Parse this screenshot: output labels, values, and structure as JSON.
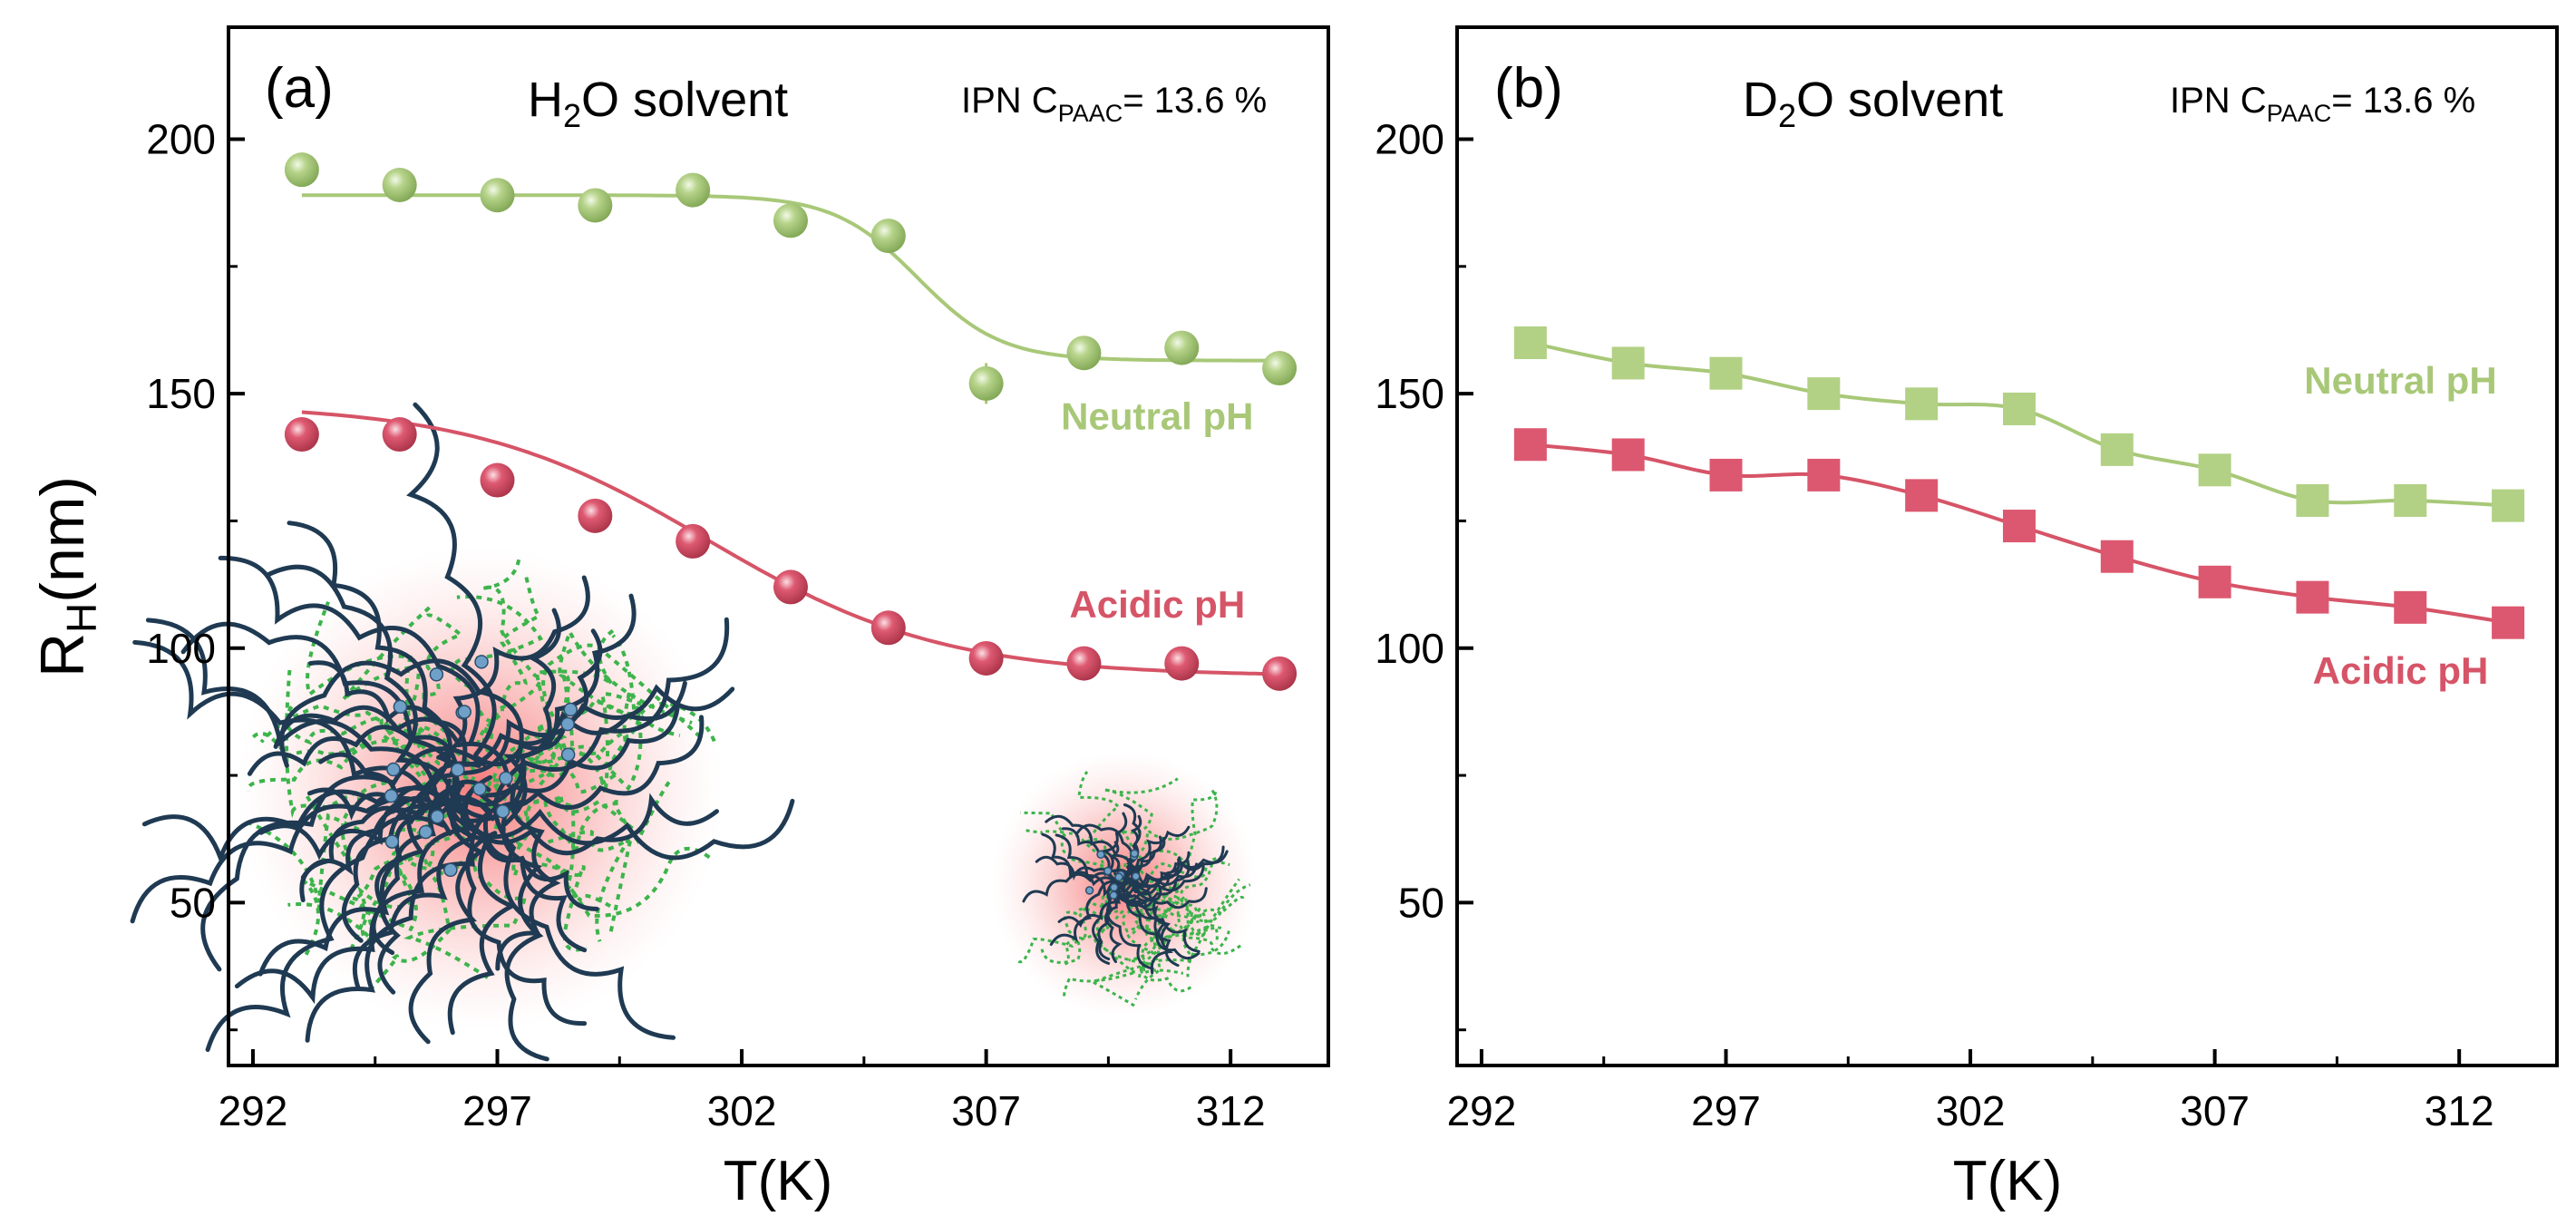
{
  "figure": {
    "ylabel_main": "R",
    "ylabel_sub": "H",
    "ylabel_unit": "(nm)"
  },
  "colors": {
    "neutral": "#a8c878",
    "neutral_fill": "#b2d184",
    "acidic": "#d65467",
    "acidic_fill": "#dc5870",
    "axis": "#000000",
    "chain": "#1f3a52",
    "dotted": "#3cb44b",
    "glow": "#f58585"
  },
  "chart_data": [
    {
      "id": "a",
      "type": "scatter",
      "panel_label": "(a)",
      "solvent_main": "H",
      "solvent_sub": "2",
      "solvent_rest": "O solvent",
      "ipn_main": "IPN C",
      "ipn_sub": "PAAC",
      "ipn_rest": "= 13.6 %",
      "xlabel": "T(K)",
      "xlim": [
        291.5,
        314
      ],
      "ylim": [
        18,
        222
      ],
      "xticks": [
        292,
        297,
        302,
        307,
        312
      ],
      "xtick_labels": [
        "292",
        "297",
        "302",
        "307",
        "312"
      ],
      "yticks": [
        50,
        100,
        150,
        200
      ],
      "ytick_labels": [
        "50",
        "100",
        "150",
        "200"
      ],
      "marker": "sphere",
      "series": [
        {
          "name": "Neutral pH",
          "label": "Neutral pH",
          "color_key": "neutral",
          "label_anchor": [
            310.5,
            143
          ],
          "x": [
            293,
            295,
            297,
            299,
            301,
            303,
            305,
            307,
            309,
            311,
            313
          ],
          "y": [
            194,
            191,
            189,
            187,
            190,
            184,
            181,
            152,
            158,
            159,
            155
          ],
          "yerr": [
            3,
            3,
            3,
            3,
            3,
            3,
            3,
            4,
            3,
            3,
            2
          ],
          "fit": {
            "type": "sigmoid",
            "top": 189,
            "bottom": 156.5,
            "x0": 305.6,
            "w": 0.85
          }
        },
        {
          "name": "Acidic pH",
          "label": "Acidic pH",
          "color_key": "acidic",
          "label_anchor": [
            310.5,
            106
          ],
          "x": [
            293,
            295,
            297,
            299,
            301,
            303,
            305,
            307,
            309,
            311,
            313
          ],
          "y": [
            142,
            142,
            133,
            126,
            121,
            112,
            104,
            98,
            97,
            97,
            95
          ],
          "yerr": [
            3,
            3,
            3,
            3,
            3,
            2,
            2,
            2,
            2,
            2,
            2
          ],
          "fit": {
            "type": "sigmoid",
            "top": 148,
            "bottom": 94.5,
            "x0": 301.3,
            "w": 2.4
          }
        }
      ]
    },
    {
      "id": "b",
      "type": "scatter",
      "panel_label": "(b)",
      "solvent_main": "D",
      "solvent_sub": "2",
      "solvent_rest": "O solvent",
      "ipn_main": "IPN C",
      "ipn_sub": "PAAC",
      "ipn_rest": "= 13.6 %",
      "xlabel": "T(K)",
      "xlim": [
        291.5,
        314
      ],
      "ylim": [
        18,
        222
      ],
      "xticks": [
        292,
        297,
        302,
        307,
        312
      ],
      "xtick_labels": [
        "292",
        "297",
        "302",
        "307",
        "312"
      ],
      "yticks": [
        50,
        100,
        150,
        200
      ],
      "ytick_labels": [
        "50",
        "100",
        "150",
        "200"
      ],
      "marker": "square",
      "series": [
        {
          "name": "Neutral pH",
          "label": "Neutral pH",
          "color_key": "neutral",
          "label_anchor": [
            310.8,
            150
          ],
          "x": [
            293,
            295,
            297,
            299,
            301,
            303,
            305,
            307,
            309,
            311,
            313
          ],
          "y": [
            160,
            156,
            154,
            150,
            148,
            147,
            139,
            135,
            129,
            129,
            128
          ]
        },
        {
          "name": "Acidic pH",
          "label": "Acidic pH",
          "color_key": "acidic",
          "label_anchor": [
            310.8,
            93
          ],
          "x": [
            293,
            295,
            297,
            299,
            301,
            303,
            305,
            307,
            309,
            311,
            313
          ],
          "y": [
            140,
            138,
            134,
            134,
            130,
            124,
            118,
            113,
            110,
            108,
            105
          ]
        }
      ]
    }
  ]
}
